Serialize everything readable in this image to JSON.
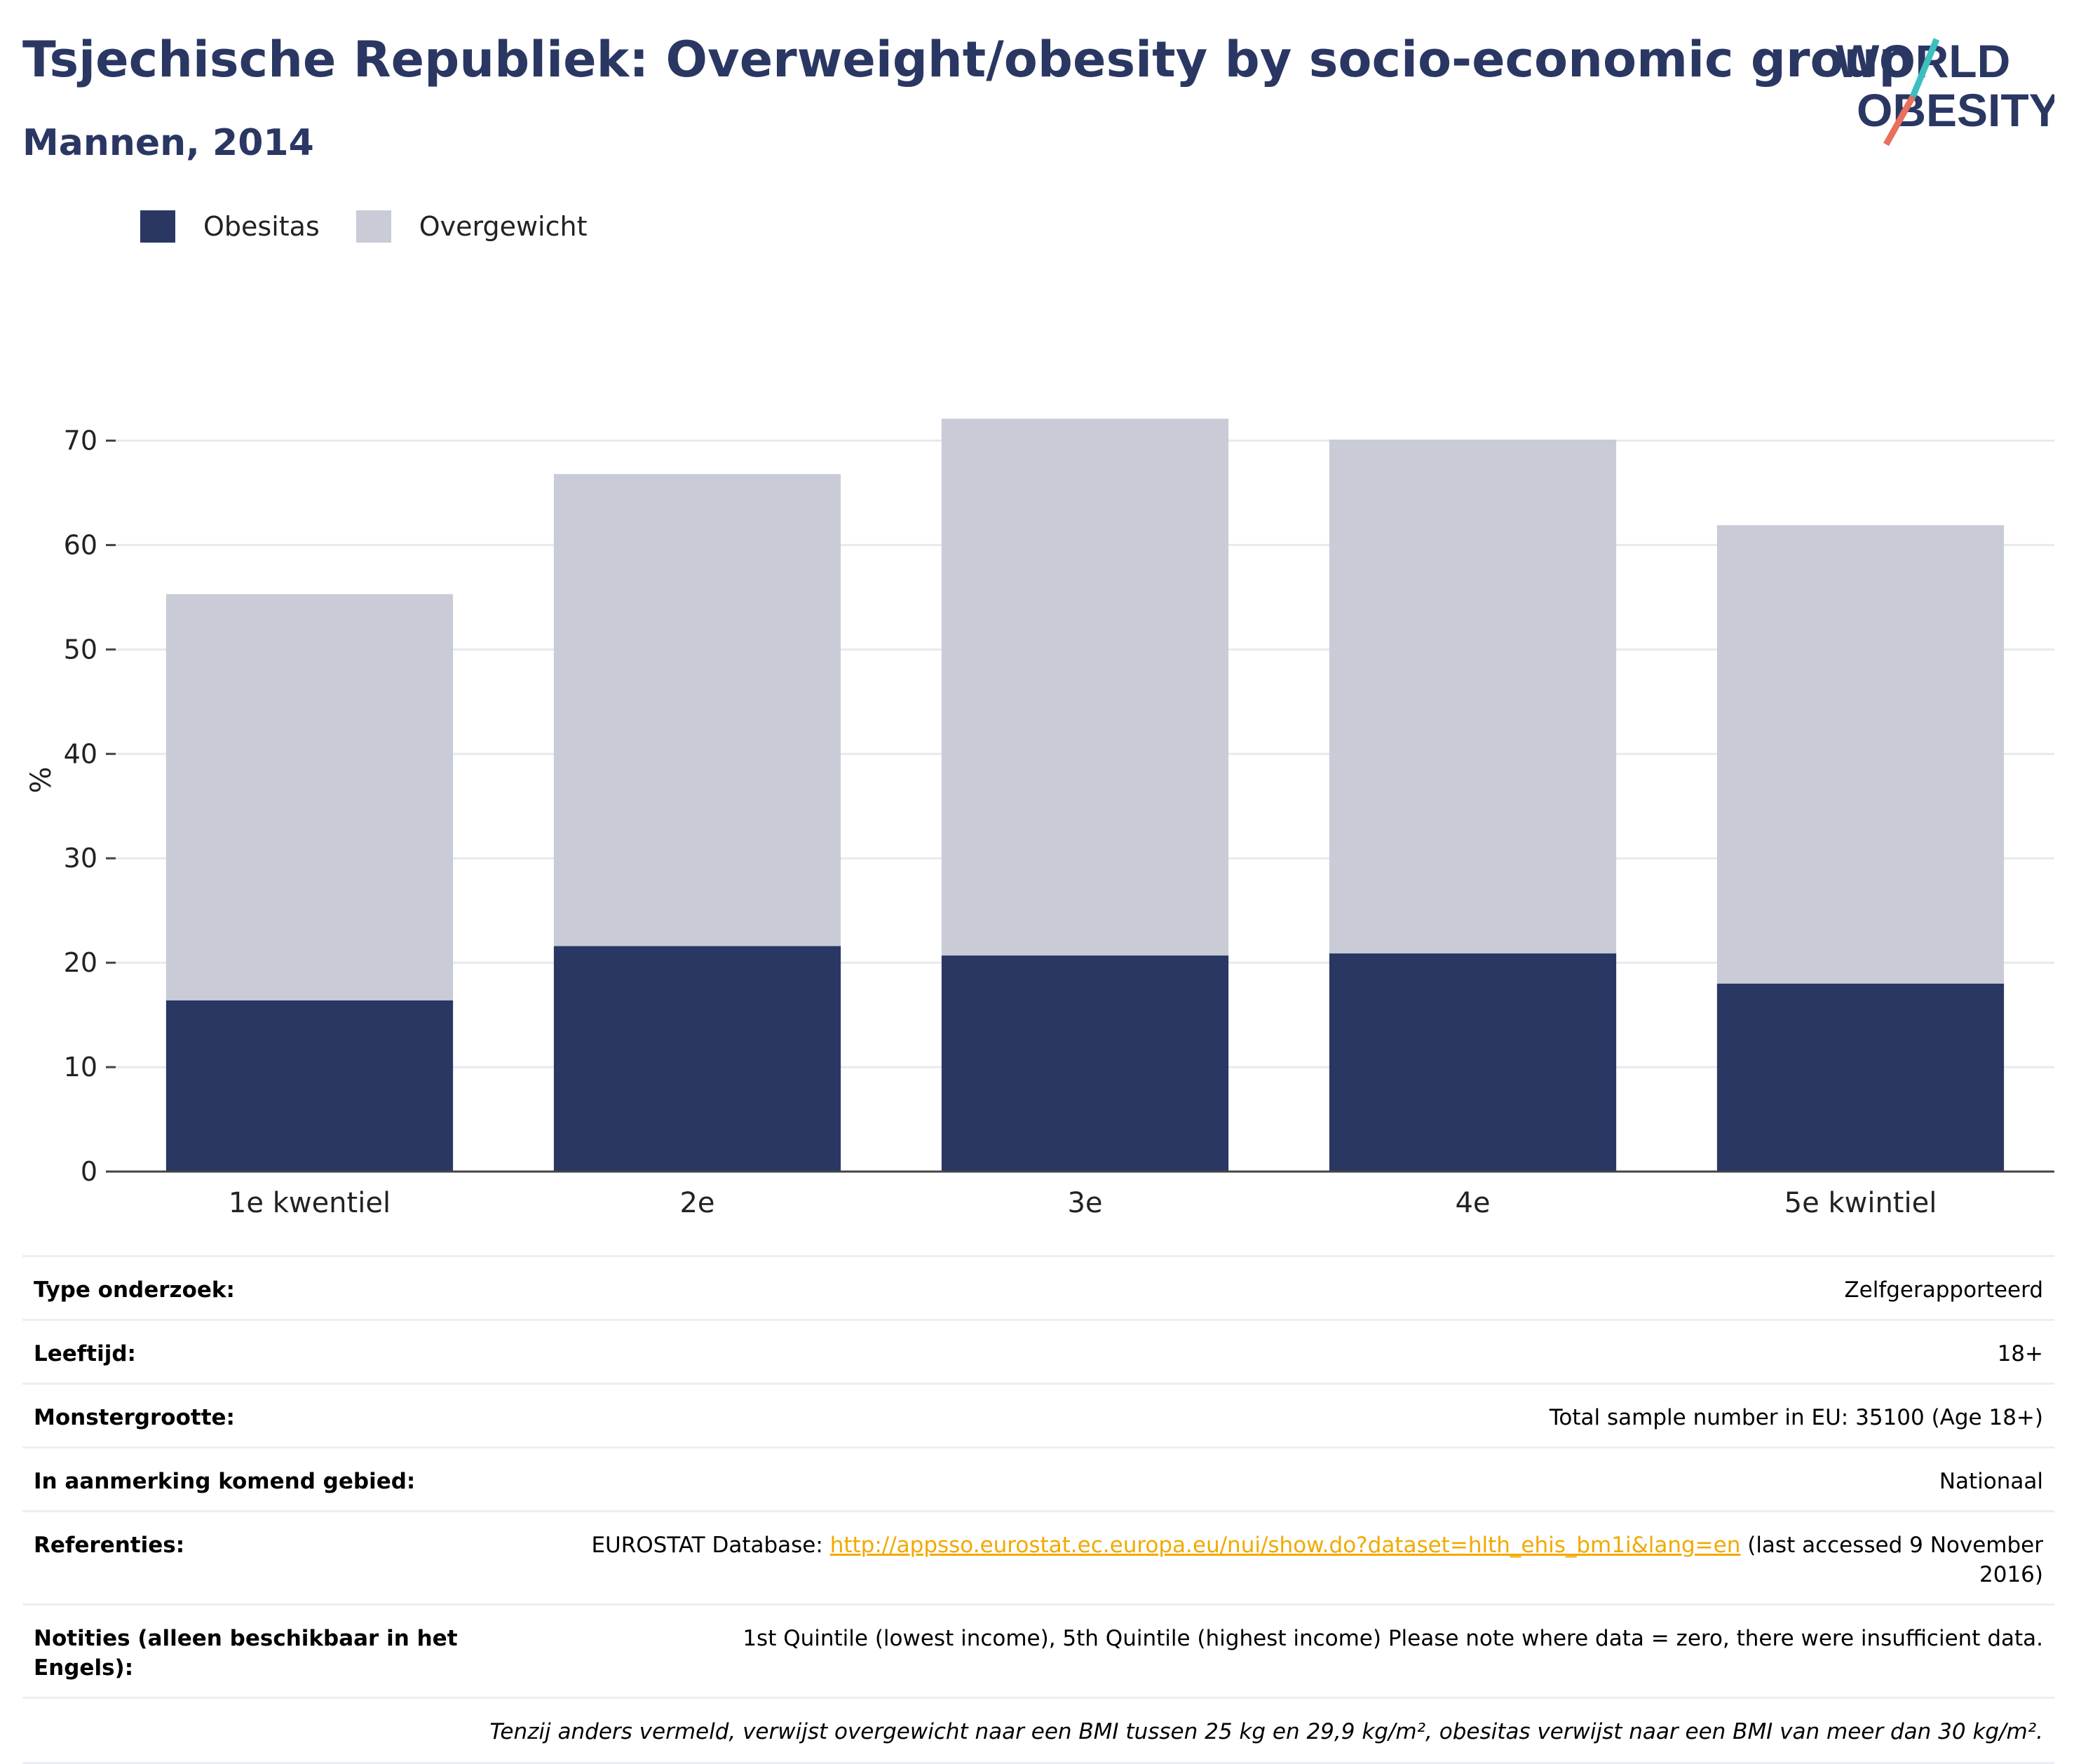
{
  "header": {
    "title": "Tsjechische Republiek: Overweight/obesity by socio-economic group",
    "subtitle": "Mannen, 2014"
  },
  "logo": {
    "line1": "WORLD",
    "line2": "OBESITY"
  },
  "colors": {
    "title": "#2a3763",
    "obesitas": "#2a3763",
    "overgewicht": "#c9cbd6",
    "link": "#f2a900",
    "logo_teal": "#3dbfbf",
    "logo_coral": "#e8705f"
  },
  "chart_data": {
    "type": "bar",
    "stacked": true,
    "categories": [
      "1e kwentiel",
      "2e",
      "3e",
      "4e",
      "5e kwintiel"
    ],
    "series": [
      {
        "name": "Obesitas",
        "values": [
          16.4,
          21.6,
          20.7,
          20.9,
          18.0
        ],
        "color": "#2a3763"
      },
      {
        "name": "Overgewicht",
        "values": [
          38.9,
          45.2,
          51.4,
          49.2,
          43.9
        ],
        "color": "#c9cbd6"
      }
    ],
    "ylabel": "%",
    "xlabel": "",
    "ylim": [
      0,
      75
    ],
    "yticks": [
      0,
      10,
      20,
      30,
      40,
      50,
      60,
      70
    ],
    "grid": true,
    "legend_position": "top-left"
  },
  "meta": {
    "rows": [
      {
        "key": "Type onderzoek:",
        "value": "Zelfgerapporteerd"
      },
      {
        "key": "Leeftijd:",
        "value": "18+"
      },
      {
        "key": "Monstergrootte:",
        "value": "Total sample number in EU: 35100 (Age 18+)"
      },
      {
        "key": "In aanmerking komend gebied:",
        "value": "Nationaal"
      }
    ],
    "references": {
      "key": "Referenties:",
      "prefix": "EUROSTAT Database: ",
      "link": "http://appsso.eurostat.ec.europa.eu/nui/show.do?dataset=hlth_ehis_bm1i&lang=en",
      "suffix": " (last accessed 9 November 2016)"
    },
    "notes": {
      "key": "Notities (alleen beschikbaar in het Engels):",
      "value": "1st Quintile (lowest income), 5th Quintile (highest income) Please note where data = zero, there were insufficient data."
    },
    "footnote": "Tenzij anders vermeld, verwijst overgewicht naar een BMI tussen 25 kg en 29,9 kg/m², obesitas verwijst naar een BMI van meer dan 30 kg/m²."
  }
}
